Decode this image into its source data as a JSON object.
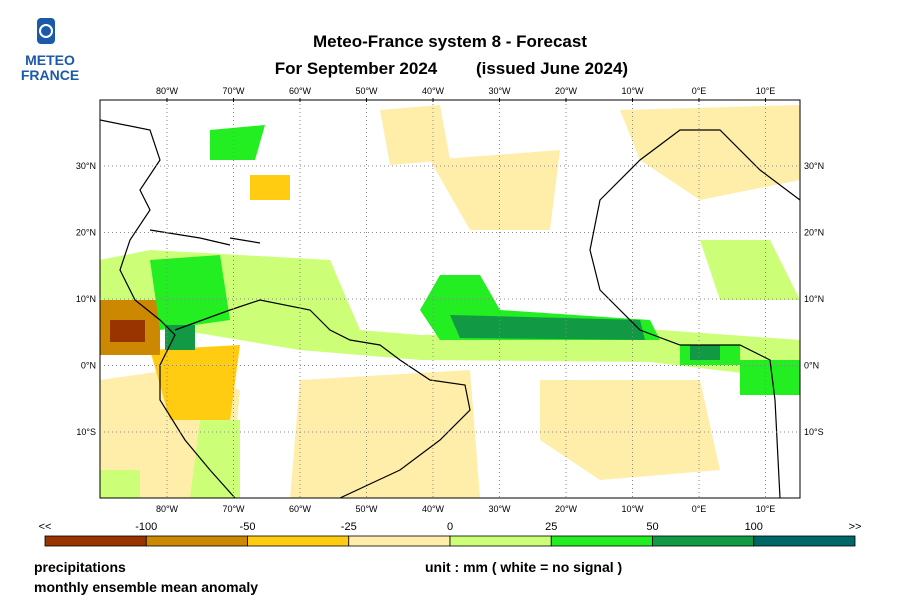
{
  "logo": {
    "line1": "METEO",
    "line2": "FRANCE"
  },
  "title": {
    "line1": "Meteo-France system 8  -  Forecast",
    "line2": "For September 2024",
    "issued": "(issued June 2024)"
  },
  "map": {
    "lon_labels": [
      "80°W",
      "70°W",
      "60°W",
      "50°W",
      "40°W",
      "30°W",
      "20°W",
      "10°W",
      "0°E",
      "10°E"
    ],
    "lat_labels": [
      "30°N",
      "20°N",
      "10°N",
      "0°N",
      "10°S"
    ]
  },
  "legend": {
    "labels": [
      "<<",
      "-100",
      "-50",
      "-25",
      "0",
      "25",
      "50",
      "100",
      ">>"
    ],
    "colors": [
      "#993300",
      "#cc8800",
      "#ffcc11",
      "#ffeeaa",
      "#ccff77",
      "#22ee22",
      "#119944",
      "#006666"
    ]
  },
  "footer": {
    "variable": "precipitations",
    "description": "monthly ensemble mean anomaly",
    "unit": "unit : mm  ( white = no signal )"
  }
}
